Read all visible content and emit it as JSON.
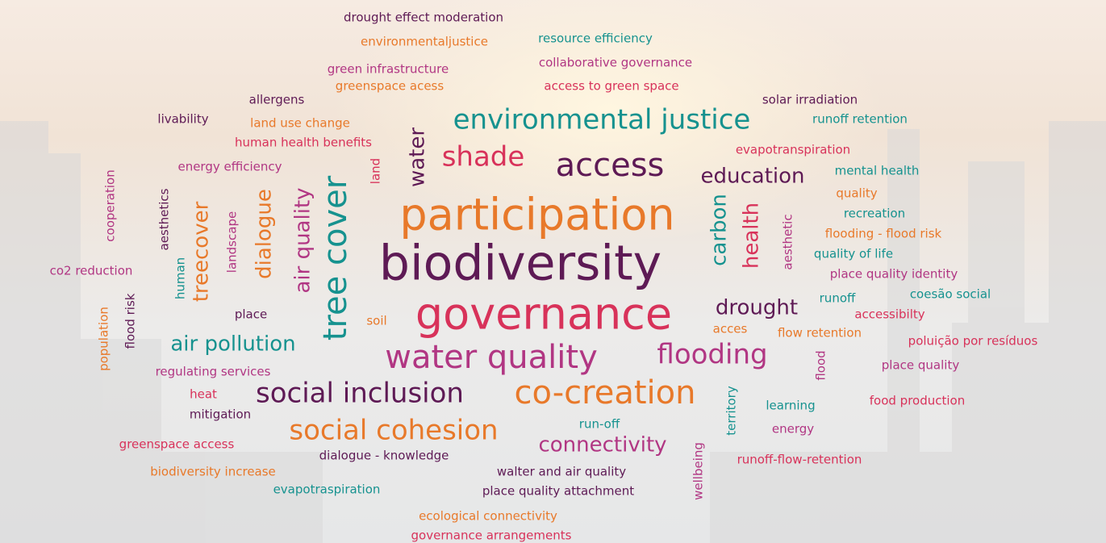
{
  "words": [
    "drought effect moderation",
    "environmentaljustice",
    "resource efficiency",
    "green infrastructure",
    "collaborative governance",
    "greenspace acess",
    "access to green space",
    "allergens",
    "solar irradiation",
    "livability",
    "land use change",
    "environmental justice",
    "runoff retention",
    "human health benefits",
    "evapotranspiration",
    "shade",
    "access",
    "energy efficiency",
    "education",
    "mental health",
    "water",
    "land",
    "cooperation",
    "aesthetics",
    "treecover",
    "landscape",
    "dialogue",
    "air quality",
    "tree cover",
    "participation",
    "biodiversity",
    "governance",
    "carbon",
    "health",
    "aesthetic",
    "quality",
    "recreation",
    "flooding - flood risk",
    "quality of life",
    "place quality identity",
    "co2 reduction",
    "human",
    "runoff",
    "coesão social",
    "drought",
    "accessibilty",
    "flood risk",
    "place",
    "soil",
    "population",
    "acces",
    "flow retention",
    "poluição por resíduos",
    "air pollution",
    "water quality",
    "flooding",
    "flood",
    "regulating services",
    "place quality",
    "heat",
    "social inclusion",
    "co-creation",
    "territory",
    "learning",
    "food production",
    "mitigation",
    "run-off",
    "energy",
    "social cohesion",
    "connectivity",
    "wellbeing",
    "greenspace access",
    "dialogue - knowledge",
    "runoff-flow-retention",
    "biodiversity increase",
    "walter and air quality",
    "evapotraspiration",
    "place quality attachment",
    "ecological connectivity",
    "governance arrangements"
  ]
}
